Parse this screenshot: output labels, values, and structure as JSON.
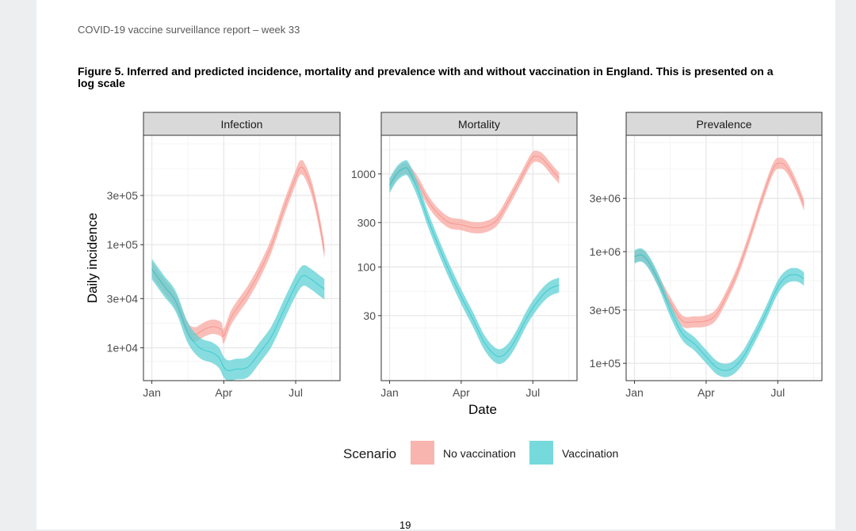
{
  "page": {
    "header": "COVID-19 vaccine surveillance report – week 33",
    "caption": "Figure 5. Inferred and predicted incidence, mortality and prevalence with and without vaccination in England. This is presented on a log scale",
    "page_number": "19"
  },
  "colors": {
    "no_vaccination": "#f8766d",
    "vaccination": "#00bfc4",
    "band_no_vaccination": "#f8a8a2",
    "band_vaccination": "#5fd0d4"
  },
  "chart_data": [
    {
      "type": "area",
      "panel": "Infection",
      "scale": "log",
      "ylabel": "Daily incidence",
      "xlabel": "",
      "x_ticks": [
        "Jan",
        "Apr",
        "Jul"
      ],
      "x_tick_months": [
        0,
        3,
        6
      ],
      "xlim_months": [
        -0.35,
        7.85
      ],
      "y_ticks": [
        10000,
        30000,
        100000,
        300000
      ],
      "y_tick_labels": [
        "1e+04",
        "3e+04",
        "1e+05",
        "3e+05"
      ],
      "ylim": [
        4800,
        1150000
      ],
      "series": [
        {
          "name": "No vaccination",
          "band": 0.07,
          "points": [
            [
              0,
              58000
            ],
            [
              0.5,
              40000
            ],
            [
              1,
              28000
            ],
            [
              1.5,
              15000
            ],
            [
              1.8,
              13500
            ],
            [
              2,
              14200
            ],
            [
              2.3,
              15500
            ],
            [
              2.6,
              16000
            ],
            [
              2.9,
              15000
            ],
            [
              3,
              13000
            ],
            [
              3.3,
              19500
            ],
            [
              3.7,
              27000
            ],
            [
              4,
              34000
            ],
            [
              4.5,
              55000
            ],
            [
              5,
              100000
            ],
            [
              5.5,
              220000
            ],
            [
              6,
              450000
            ],
            [
              6.2,
              560000
            ],
            [
              6.4,
              510000
            ],
            [
              6.7,
              330000
            ],
            [
              7,
              160000
            ],
            [
              7.2,
              85000
            ]
          ]
        },
        {
          "name": "Vaccination",
          "band": 0.1,
          "points": [
            [
              0,
              58000
            ],
            [
              0.5,
              40000
            ],
            [
              1,
              28000
            ],
            [
              1.5,
              14000
            ],
            [
              2,
              10000
            ],
            [
              2.5,
              9000
            ],
            [
              2.8,
              8000
            ],
            [
              3,
              6500
            ],
            [
              3.2,
              6000
            ],
            [
              3.5,
              6200
            ],
            [
              4,
              6500
            ],
            [
              4.5,
              9000
            ],
            [
              5,
              13000
            ],
            [
              5.5,
              23000
            ],
            [
              6,
              40000
            ],
            [
              6.3,
              50000
            ],
            [
              6.6,
              47000
            ],
            [
              7,
              40000
            ],
            [
              7.2,
              37000
            ]
          ]
        }
      ]
    },
    {
      "type": "area",
      "panel": "Mortality",
      "scale": "log",
      "ylabel": "",
      "xlabel": "Date",
      "x_ticks": [
        "Jan",
        "Apr",
        "Jul"
      ],
      "x_tick_months": [
        0,
        3,
        6
      ],
      "xlim_months": [
        -0.35,
        7.85
      ],
      "y_ticks": [
        30,
        100,
        300,
        1000
      ],
      "y_tick_labels": [
        "30",
        "100",
        "300",
        "1000"
      ],
      "ylim": [
        6,
        2600
      ],
      "series": [
        {
          "name": "No vaccination",
          "band": 0.06,
          "points": [
            [
              0,
              750
            ],
            [
              0.3,
              1000
            ],
            [
              0.6,
              1150
            ],
            [
              0.8,
              1100
            ],
            [
              1.2,
              800
            ],
            [
              1.6,
              520
            ],
            [
              2,
              380
            ],
            [
              2.5,
              300
            ],
            [
              3,
              285
            ],
            [
              3.5,
              265
            ],
            [
              4,
              270
            ],
            [
              4.5,
              320
            ],
            [
              5,
              520
            ],
            [
              5.5,
              900
            ],
            [
              5.9,
              1400
            ],
            [
              6.1,
              1550
            ],
            [
              6.4,
              1450
            ],
            [
              6.8,
              1100
            ],
            [
              7.1,
              900
            ]
          ]
        },
        {
          "name": "Vaccination",
          "band": 0.08,
          "points": [
            [
              0,
              750
            ],
            [
              0.3,
              1000
            ],
            [
              0.6,
              1150
            ],
            [
              0.8,
              1100
            ],
            [
              1.2,
              650
            ],
            [
              1.6,
              330
            ],
            [
              2,
              180
            ],
            [
              2.5,
              90
            ],
            [
              3,
              48
            ],
            [
              3.5,
              27
            ],
            [
              4,
              15
            ],
            [
              4.5,
              11
            ],
            [
              4.9,
              12
            ],
            [
              5.3,
              17
            ],
            [
              5.8,
              30
            ],
            [
              6.3,
              46
            ],
            [
              6.7,
              58
            ],
            [
              7.1,
              64
            ]
          ]
        }
      ]
    },
    {
      "type": "area",
      "panel": "Prevalence",
      "scale": "log",
      "ylabel": "",
      "xlabel": "",
      "x_ticks": [
        "Jan",
        "Apr",
        "Jul"
      ],
      "x_tick_months": [
        0,
        3,
        6
      ],
      "xlim_months": [
        -0.35,
        7.85
      ],
      "y_ticks": [
        100000,
        300000,
        1000000,
        3000000
      ],
      "y_tick_labels": [
        "1e+05",
        "3e+05",
        "1e+06",
        "3e+06"
      ],
      "ylim": [
        70000,
        11000000
      ],
      "series": [
        {
          "name": "No vaccination",
          "band": 0.05,
          "points": [
            [
              0,
              900000
            ],
            [
              0.3,
              930000
            ],
            [
              0.6,
              800000
            ],
            [
              1,
              550000
            ],
            [
              1.5,
              350000
            ],
            [
              2,
              240000
            ],
            [
              2.5,
              235000
            ],
            [
              3,
              240000
            ],
            [
              3.4,
              270000
            ],
            [
              3.8,
              380000
            ],
            [
              4.3,
              650000
            ],
            [
              4.8,
              1300000
            ],
            [
              5.3,
              2800000
            ],
            [
              5.8,
              5500000
            ],
            [
              6.1,
              6200000
            ],
            [
              6.4,
              5600000
            ],
            [
              6.8,
              3800000
            ],
            [
              7.1,
              2600000
            ]
          ]
        },
        {
          "name": "Vaccination",
          "band": 0.06,
          "points": [
            [
              0,
              900000
            ],
            [
              0.3,
              930000
            ],
            [
              0.6,
              800000
            ],
            [
              1,
              550000
            ],
            [
              1.5,
              300000
            ],
            [
              2,
              185000
            ],
            [
              2.5,
              150000
            ],
            [
              3,
              115000
            ],
            [
              3.5,
              90000
            ],
            [
              4,
              88000
            ],
            [
              4.5,
              110000
            ],
            [
              5,
              170000
            ],
            [
              5.5,
              280000
            ],
            [
              6,
              480000
            ],
            [
              6.4,
              600000
            ],
            [
              6.8,
              620000
            ],
            [
              7.1,
              570000
            ]
          ]
        }
      ]
    }
  ],
  "legend": {
    "title": "Scenario",
    "entries": [
      {
        "label": "No vaccination",
        "color": "#f8b4ae"
      },
      {
        "label": "Vaccination",
        "color": "#76d9dc"
      }
    ]
  }
}
